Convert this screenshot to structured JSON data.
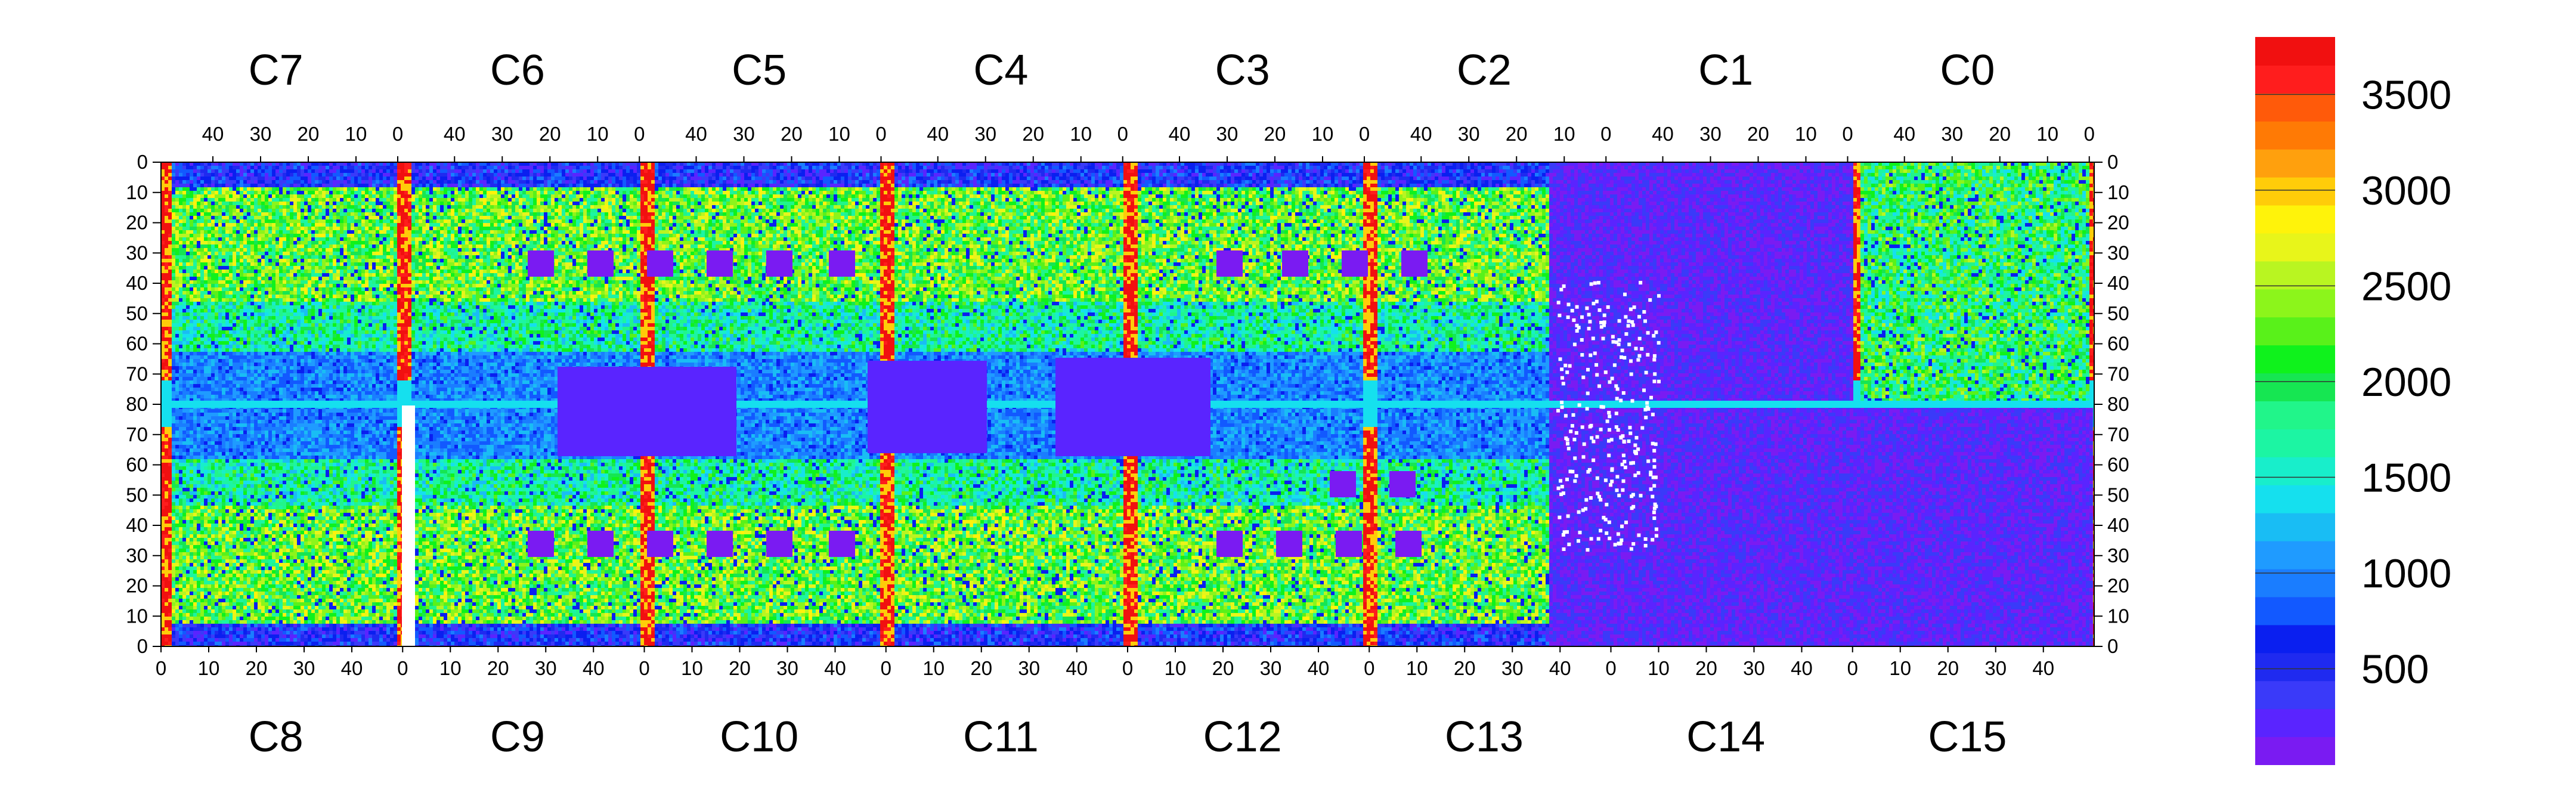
{
  "chart_data": {
    "type": "heatmap",
    "top_chip_labels": [
      "C7",
      "C6",
      "C5",
      "C4",
      "C3",
      "C2",
      "C1",
      "C0"
    ],
    "bottom_chip_labels": [
      "C8",
      "C9",
      "C10",
      "C11",
      "C12",
      "C13",
      "C14",
      "C15"
    ],
    "top_axis_ticks": [
      "40",
      "30",
      "20",
      "10",
      "0"
    ],
    "bottom_axis_ticks": [
      "0",
      "10",
      "20",
      "30",
      "40"
    ],
    "y_ticks": [
      "0",
      "10",
      "20",
      "30",
      "40",
      "50",
      "60",
      "70",
      "80",
      "70",
      "60",
      "50",
      "40",
      "30",
      "20",
      "10",
      "0"
    ],
    "colorbar_ticks": [
      "3500",
      "3000",
      "2500",
      "2000",
      "1500",
      "1000",
      "500"
    ],
    "colorbar_tick_values": [
      3500,
      3000,
      2500,
      2000,
      1500,
      1000,
      500
    ],
    "colorbar_range": [
      0,
      3800
    ],
    "colorbar_levels": [
      "#7a1bf2",
      "#5a24ff",
      "#3a3af9",
      "#1f2af0",
      "#0a1ff0",
      "#1259ff",
      "#1a7dff",
      "#1f9bff",
      "#19bdf4",
      "#15e0ee",
      "#18eecb",
      "#1cf5a3",
      "#21f58a",
      "#16e652",
      "#0ff21c",
      "#59f11a",
      "#8cf51b",
      "#b9f521",
      "#e8f51a",
      "#fff30a",
      "#ffcc09",
      "#ffa00d",
      "#ff7a05",
      "#ff5a0a",
      "#ff1d1d",
      "#f11010"
    ],
    "grid": false
  }
}
